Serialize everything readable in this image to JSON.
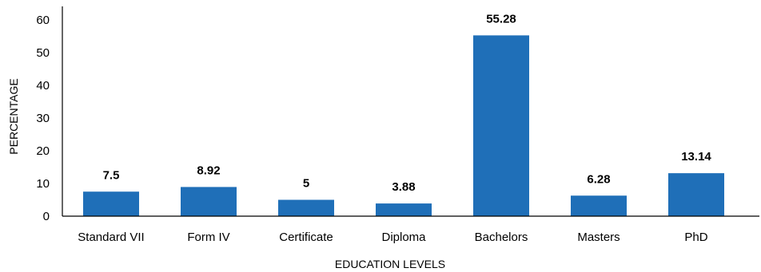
{
  "chart_data": {
    "type": "bar",
    "categories": [
      "Standard VII",
      "Form IV",
      "Certificate",
      "Diploma",
      "Bachelors",
      "Masters",
      "PhD"
    ],
    "values": [
      7.5,
      8.92,
      5,
      3.88,
      55.28,
      6.28,
      13.14
    ],
    "data_labels": [
      "7.5",
      "8.92",
      "5",
      "3.88",
      "55.28",
      "6.28",
      "13.14"
    ],
    "title": "",
    "xlabel": "EDUCATION LEVELS",
    "ylabel": "PERCENTAGE",
    "ylim": [
      0,
      60
    ],
    "yticks": [
      "0",
      "10",
      "20",
      "30",
      "40",
      "50",
      "60"
    ],
    "grid": false,
    "legend": "none",
    "bar_color": "#1f6fb8"
  }
}
